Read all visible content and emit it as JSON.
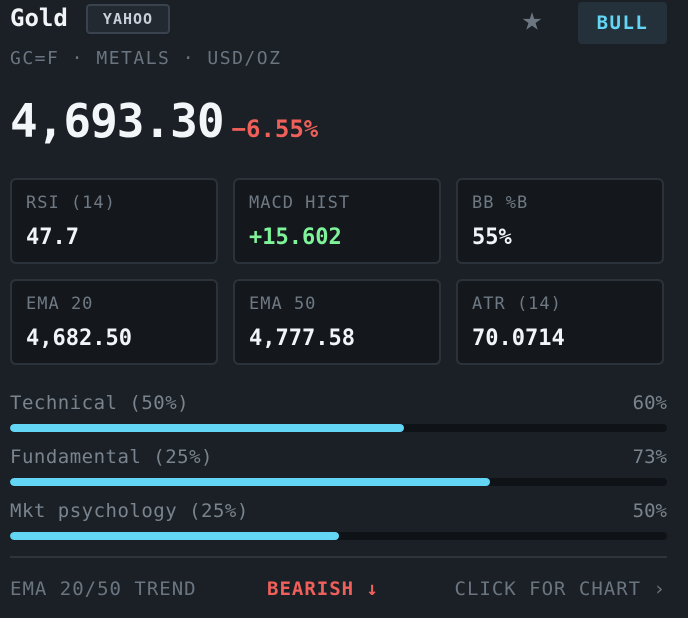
{
  "header": {
    "title": "Gold",
    "source": "YAHOO",
    "star_glyph": "★",
    "signal": "BULL"
  },
  "subtitle": "GC=F · METALS · USD/OZ",
  "price": {
    "value": "4,693.30",
    "change": "−6.55%"
  },
  "indicators": [
    {
      "label": "RSI (14)",
      "value": "47.7"
    },
    {
      "label": "MACD HIST",
      "value": "+15.602"
    },
    {
      "label": "BB %B",
      "value": "55%"
    },
    {
      "label": "EMA 20",
      "value": "4,682.50"
    },
    {
      "label": "EMA 50",
      "value": "4,777.58"
    },
    {
      "label": "ATR (14)",
      "value": "70.0714"
    }
  ],
  "scores": [
    {
      "label": "Technical (50%)",
      "pct_text": "60%",
      "value": 60
    },
    {
      "label": "Fundamental (25%)",
      "pct_text": "73%",
      "value": 73
    },
    {
      "label": "Mkt psychology (25%)",
      "pct_text": "50%",
      "value": 50
    }
  ],
  "footer": {
    "trend_label": "EMA 20/50 TREND",
    "trend_value": "BEARISH ↓",
    "link": "CLICK FOR CHART ›"
  },
  "colors": {
    "accent": "#63d6f6",
    "negative": "#f0605a",
    "positive": "#7ef39a",
    "background": "#1b2026"
  }
}
